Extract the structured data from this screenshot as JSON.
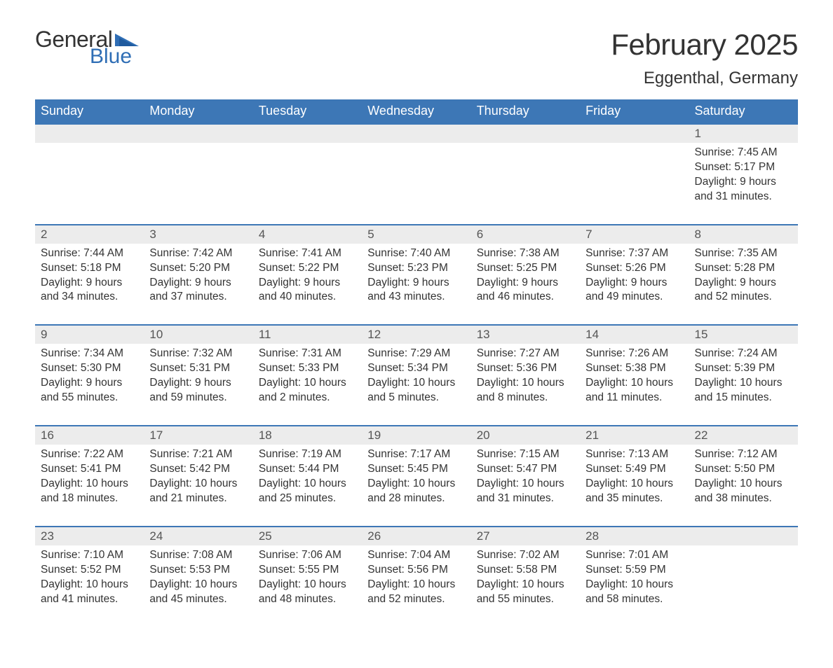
{
  "logo": {
    "word1": "General",
    "word2": "Blue",
    "text_color": "#333333",
    "accent_color": "#2f6eb5"
  },
  "header": {
    "month_title": "February 2025",
    "location": "Eggenthal, Germany"
  },
  "colors": {
    "header_bg": "#3d77b6",
    "header_text": "#ffffff",
    "daynum_bg": "#ececec",
    "row_border": "#3d77b6",
    "body_text": "#333333",
    "daynum_text": "#555555",
    "bg": "#ffffff"
  },
  "layout": {
    "start_weekday_index": 6,
    "days_in_month": 28,
    "columns": 7
  },
  "weekdays": [
    "Sunday",
    "Monday",
    "Tuesday",
    "Wednesday",
    "Thursday",
    "Friday",
    "Saturday"
  ],
  "days": [
    {
      "n": 1,
      "sunrise": "7:45 AM",
      "sunset": "5:17 PM",
      "daylight": "9 hours and 31 minutes."
    },
    {
      "n": 2,
      "sunrise": "7:44 AM",
      "sunset": "5:18 PM",
      "daylight": "9 hours and 34 minutes."
    },
    {
      "n": 3,
      "sunrise": "7:42 AM",
      "sunset": "5:20 PM",
      "daylight": "9 hours and 37 minutes."
    },
    {
      "n": 4,
      "sunrise": "7:41 AM",
      "sunset": "5:22 PM",
      "daylight": "9 hours and 40 minutes."
    },
    {
      "n": 5,
      "sunrise": "7:40 AM",
      "sunset": "5:23 PM",
      "daylight": "9 hours and 43 minutes."
    },
    {
      "n": 6,
      "sunrise": "7:38 AM",
      "sunset": "5:25 PM",
      "daylight": "9 hours and 46 minutes."
    },
    {
      "n": 7,
      "sunrise": "7:37 AM",
      "sunset": "5:26 PM",
      "daylight": "9 hours and 49 minutes."
    },
    {
      "n": 8,
      "sunrise": "7:35 AM",
      "sunset": "5:28 PM",
      "daylight": "9 hours and 52 minutes."
    },
    {
      "n": 9,
      "sunrise": "7:34 AM",
      "sunset": "5:30 PM",
      "daylight": "9 hours and 55 minutes."
    },
    {
      "n": 10,
      "sunrise": "7:32 AM",
      "sunset": "5:31 PM",
      "daylight": "9 hours and 59 minutes."
    },
    {
      "n": 11,
      "sunrise": "7:31 AM",
      "sunset": "5:33 PM",
      "daylight": "10 hours and 2 minutes."
    },
    {
      "n": 12,
      "sunrise": "7:29 AM",
      "sunset": "5:34 PM",
      "daylight": "10 hours and 5 minutes."
    },
    {
      "n": 13,
      "sunrise": "7:27 AM",
      "sunset": "5:36 PM",
      "daylight": "10 hours and 8 minutes."
    },
    {
      "n": 14,
      "sunrise": "7:26 AM",
      "sunset": "5:38 PM",
      "daylight": "10 hours and 11 minutes."
    },
    {
      "n": 15,
      "sunrise": "7:24 AM",
      "sunset": "5:39 PM",
      "daylight": "10 hours and 15 minutes."
    },
    {
      "n": 16,
      "sunrise": "7:22 AM",
      "sunset": "5:41 PM",
      "daylight": "10 hours and 18 minutes."
    },
    {
      "n": 17,
      "sunrise": "7:21 AM",
      "sunset": "5:42 PM",
      "daylight": "10 hours and 21 minutes."
    },
    {
      "n": 18,
      "sunrise": "7:19 AM",
      "sunset": "5:44 PM",
      "daylight": "10 hours and 25 minutes."
    },
    {
      "n": 19,
      "sunrise": "7:17 AM",
      "sunset": "5:45 PM",
      "daylight": "10 hours and 28 minutes."
    },
    {
      "n": 20,
      "sunrise": "7:15 AM",
      "sunset": "5:47 PM",
      "daylight": "10 hours and 31 minutes."
    },
    {
      "n": 21,
      "sunrise": "7:13 AM",
      "sunset": "5:49 PM",
      "daylight": "10 hours and 35 minutes."
    },
    {
      "n": 22,
      "sunrise": "7:12 AM",
      "sunset": "5:50 PM",
      "daylight": "10 hours and 38 minutes."
    },
    {
      "n": 23,
      "sunrise": "7:10 AM",
      "sunset": "5:52 PM",
      "daylight": "10 hours and 41 minutes."
    },
    {
      "n": 24,
      "sunrise": "7:08 AM",
      "sunset": "5:53 PM",
      "daylight": "10 hours and 45 minutes."
    },
    {
      "n": 25,
      "sunrise": "7:06 AM",
      "sunset": "5:55 PM",
      "daylight": "10 hours and 48 minutes."
    },
    {
      "n": 26,
      "sunrise": "7:04 AM",
      "sunset": "5:56 PM",
      "daylight": "10 hours and 52 minutes."
    },
    {
      "n": 27,
      "sunrise": "7:02 AM",
      "sunset": "5:58 PM",
      "daylight": "10 hours and 55 minutes."
    },
    {
      "n": 28,
      "sunrise": "7:01 AM",
      "sunset": "5:59 PM",
      "daylight": "10 hours and 58 minutes."
    }
  ],
  "labels": {
    "sunrise": "Sunrise:",
    "sunset": "Sunset:",
    "daylight": "Daylight:"
  }
}
